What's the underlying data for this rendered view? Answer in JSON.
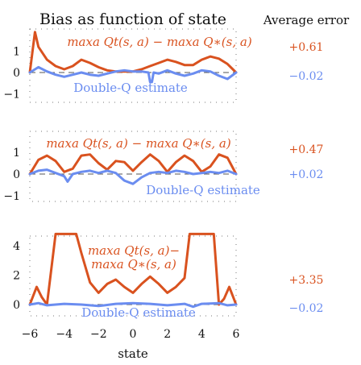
{
  "title": "Bias as function of state",
  "error_header": "Average error",
  "x_label": "state",
  "colors": {
    "orange": "#d9521f",
    "blue": "#6b8df0",
    "gray": "#555555"
  },
  "x_ticks": [
    "−6",
    "−4",
    "−2",
    "0",
    "2",
    "4",
    "6"
  ],
  "panels": [
    {
      "y_ticks": [
        "1",
        "0",
        "−1"
      ],
      "orange_label": "max_a Q_t(s,a) − max_a Q_*(s,a)",
      "orange_label_text": "maxa Qt(s, a) − maxa Q∗(s, a)",
      "blue_label": "Double-Q estimate",
      "error_orange": "+0.61",
      "error_blue": "−0.02"
    },
    {
      "y_ticks": [
        "1",
        "0",
        "−1"
      ],
      "orange_label": "max_a Q_t(s,a) − max_a Q_*(s,a)",
      "orange_label_text": "maxa Qt(s, a) − maxa Q∗(s, a)",
      "blue_label": "Double-Q estimate",
      "error_orange": "+0.47",
      "error_blue": "+0.02"
    },
    {
      "y_ticks": [
        "4",
        "2",
        "0"
      ],
      "orange_label_line1": "maxa Qt(s, a)−",
      "orange_label_line2": "maxa Q∗(s, a)",
      "blue_label": "Double-Q estimate",
      "error_orange": "+3.35",
      "error_blue": "−0.02"
    }
  ],
  "chart_data": [
    {
      "type": "line",
      "title": "Bias as function of state",
      "xlim": [
        -6,
        6
      ],
      "ylim": [
        -1.5,
        2
      ],
      "series": [
        {
          "name": "max_a Q_t(s,a) − max_a Q_*(s,a)",
          "average_error": 0.61,
          "points": [
            [
              -6,
              0.0
            ],
            [
              -5.7,
              1.9
            ],
            [
              -5.5,
              1.2
            ],
            [
              -5,
              0.6
            ],
            [
              -4.5,
              0.3
            ],
            [
              -4,
              0.15
            ],
            [
              -3.5,
              0.3
            ],
            [
              -3,
              0.6
            ],
            [
              -2.5,
              0.45
            ],
            [
              -2,
              0.25
            ],
            [
              -1.5,
              0.1
            ],
            [
              -1,
              0.05
            ],
            [
              -0.5,
              0.05
            ],
            [
              0,
              0.05
            ],
            [
              0.5,
              0.15
            ],
            [
              1,
              0.3
            ],
            [
              1.5,
              0.45
            ],
            [
              2,
              0.6
            ],
            [
              2.5,
              0.5
            ],
            [
              3,
              0.35
            ],
            [
              3.5,
              0.35
            ],
            [
              4,
              0.6
            ],
            [
              4.5,
              0.75
            ],
            [
              5,
              0.65
            ],
            [
              5.5,
              0.4
            ],
            [
              6,
              0.0
            ]
          ]
        },
        {
          "name": "Double-Q estimate",
          "average_error": -0.02,
          "points": [
            [
              -6,
              0.0
            ],
            [
              -5.5,
              0.25
            ],
            [
              -5,
              0.05
            ],
            [
              -4.5,
              -0.1
            ],
            [
              -4,
              -0.2
            ],
            [
              -3.5,
              -0.1
            ],
            [
              -3,
              0.0
            ],
            [
              -2.5,
              -0.1
            ],
            [
              -2,
              -0.15
            ],
            [
              -1.5,
              -0.05
            ],
            [
              -1,
              0.05
            ],
            [
              -0.5,
              0.1
            ],
            [
              0,
              0.05
            ],
            [
              0.5,
              0.05
            ],
            [
              0.9,
              0.0
            ],
            [
              1,
              -0.45
            ],
            [
              1.1,
              -0.45
            ],
            [
              1.2,
              0.0
            ],
            [
              1.5,
              -0.05
            ],
            [
              2,
              0.1
            ],
            [
              2.5,
              -0.05
            ],
            [
              3,
              -0.15
            ],
            [
              3.5,
              -0.05
            ],
            [
              4,
              0.1
            ],
            [
              4.5,
              0.05
            ],
            [
              5,
              -0.15
            ],
            [
              5.5,
              -0.3
            ],
            [
              6,
              0.0
            ]
          ]
        }
      ]
    },
    {
      "type": "line",
      "xlim": [
        -6,
        6
      ],
      "ylim": [
        -1.5,
        2
      ],
      "series": [
        {
          "name": "max_a Q_t(s,a) − max_a Q_*(s,a)",
          "average_error": 0.47,
          "points": [
            [
              -6,
              0.0
            ],
            [
              -5.5,
              0.65
            ],
            [
              -5,
              0.85
            ],
            [
              -4.5,
              0.6
            ],
            [
              -4,
              0.1
            ],
            [
              -3.5,
              0.25
            ],
            [
              -3,
              0.85
            ],
            [
              -2.5,
              0.9
            ],
            [
              -2,
              0.5
            ],
            [
              -1.5,
              0.2
            ],
            [
              -1,
              0.6
            ],
            [
              -0.5,
              0.55
            ],
            [
              0,
              0.15
            ],
            [
              0.5,
              0.55
            ],
            [
              1,
              0.9
            ],
            [
              1.5,
              0.6
            ],
            [
              2,
              0.1
            ],
            [
              2.5,
              0.55
            ],
            [
              3,
              0.85
            ],
            [
              3.5,
              0.6
            ],
            [
              4,
              0.1
            ],
            [
              4.5,
              0.35
            ],
            [
              5,
              0.9
            ],
            [
              5.5,
              0.75
            ],
            [
              6,
              0.0
            ]
          ]
        },
        {
          "name": "Double-Q estimate",
          "average_error": 0.02,
          "points": [
            [
              -6,
              0.0
            ],
            [
              -5.5,
              0.15
            ],
            [
              -5,
              0.2
            ],
            [
              -4.5,
              0.05
            ],
            [
              -4,
              -0.1
            ],
            [
              -3.8,
              -0.35
            ],
            [
              -3.5,
              0.0
            ],
            [
              -3,
              0.1
            ],
            [
              -2.5,
              0.15
            ],
            [
              -2,
              0.05
            ],
            [
              -1.5,
              0.15
            ],
            [
              -1,
              0.05
            ],
            [
              -0.5,
              -0.3
            ],
            [
              0,
              -0.45
            ],
            [
              0.5,
              -0.15
            ],
            [
              1,
              0.05
            ],
            [
              1.5,
              0.1
            ],
            [
              2,
              0.05
            ],
            [
              2.5,
              0.15
            ],
            [
              3,
              0.1
            ],
            [
              3.5,
              0.0
            ],
            [
              4,
              0.05
            ],
            [
              4.5,
              0.1
            ],
            [
              5,
              0.05
            ],
            [
              5.5,
              0.15
            ],
            [
              6,
              0.0
            ]
          ]
        }
      ]
    },
    {
      "type": "line",
      "xlim": [
        -6,
        6
      ],
      "ylim": [
        -0.5,
        5
      ],
      "series": [
        {
          "name": "max_a Q_t(s,a) − max_a Q_*(s,a)",
          "average_error": 3.35,
          "points": [
            [
              -6,
              0.0
            ],
            [
              -5.6,
              1.2
            ],
            [
              -5.3,
              0.5
            ],
            [
              -5,
              0.0
            ],
            [
              -4.5,
              4.8
            ],
            [
              -3.3,
              4.8
            ],
            [
              -3,
              3.5
            ],
            [
              -2.5,
              1.5
            ],
            [
              -2,
              0.8
            ],
            [
              -1.5,
              1.4
            ],
            [
              -1,
              1.7
            ],
            [
              -0.5,
              1.2
            ],
            [
              0,
              0.8
            ],
            [
              0.5,
              1.4
            ],
            [
              1,
              1.9
            ],
            [
              1.5,
              1.4
            ],
            [
              2,
              0.8
            ],
            [
              2.5,
              1.2
            ],
            [
              3,
              1.8
            ],
            [
              3.3,
              4.8
            ],
            [
              4.7,
              4.8
            ],
            [
              5,
              0.0
            ],
            [
              5.3,
              0.4
            ],
            [
              5.6,
              1.2
            ],
            [
              6,
              0.0
            ]
          ]
        },
        {
          "name": "Double-Q estimate",
          "average_error": -0.02,
          "points": [
            [
              -6,
              0.0
            ],
            [
              -5.5,
              0.1
            ],
            [
              -5,
              -0.05
            ],
            [
              -4,
              0.05
            ],
            [
              -3,
              0.0
            ],
            [
              -2,
              -0.1
            ],
            [
              -1,
              0.05
            ],
            [
              0,
              0.1
            ],
            [
              1,
              0.05
            ],
            [
              2,
              -0.05
            ],
            [
              3,
              0.05
            ],
            [
              3.5,
              -0.15
            ],
            [
              4,
              0.05
            ],
            [
              5,
              0.1
            ],
            [
              5.5,
              -0.05
            ],
            [
              6,
              0.0
            ]
          ]
        }
      ]
    }
  ]
}
